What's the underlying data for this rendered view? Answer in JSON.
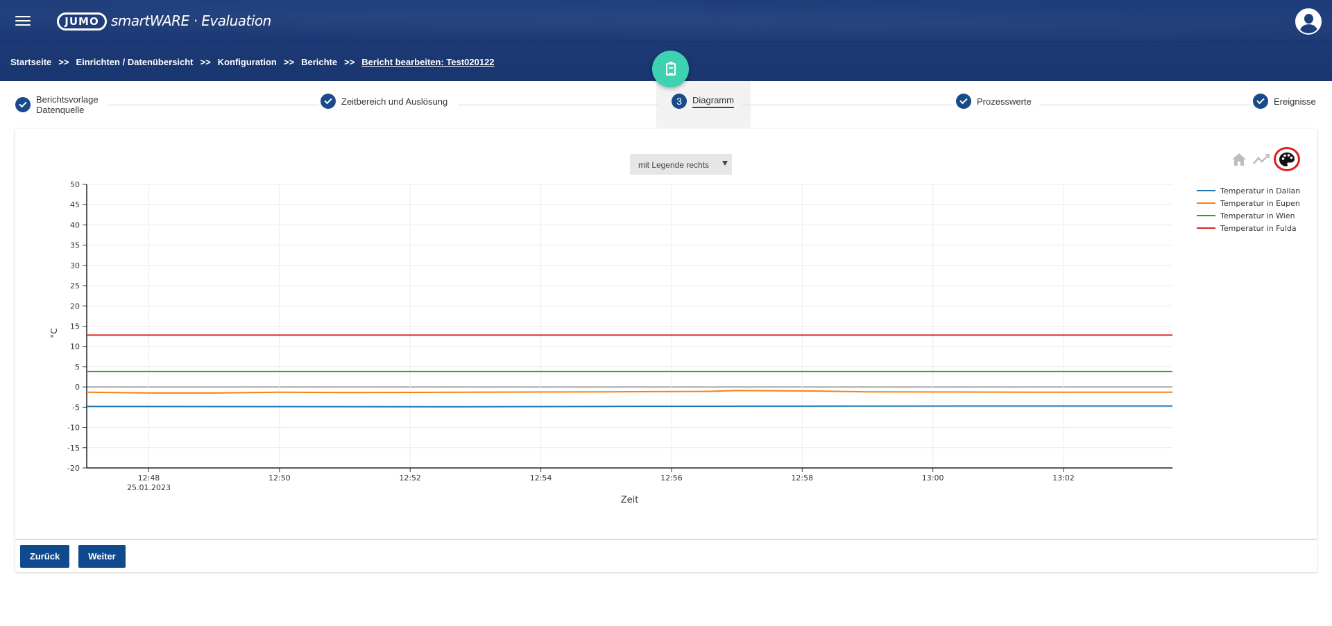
{
  "header": {
    "logo_text": "JUMO",
    "app_title": "smartWARE · Evaluation"
  },
  "breadcrumb": {
    "items": [
      "Startseite",
      "Einrichten / Datenübersicht",
      "Konfiguration",
      "Berichte"
    ],
    "separator": ">>",
    "current": "Bericht bearbeiten: Test020122"
  },
  "stepper": {
    "steps": [
      {
        "label": "Berichtsvorlage",
        "label2": "Datenquelle",
        "state": "done"
      },
      {
        "label": "Zeitbereich und Auslösung",
        "state": "done"
      },
      {
        "number": "3",
        "label": "Diagramm",
        "state": "active"
      },
      {
        "label": "Prozesswerte",
        "state": "done"
      },
      {
        "label": "Ereignisse",
        "state": "done"
      }
    ]
  },
  "toolbar": {
    "legend_select": "mit Legende rechts",
    "home_icon": "home-icon",
    "trend_icon": "trend-icon",
    "palette_icon": "palette-icon"
  },
  "chart_data": {
    "type": "line",
    "xlabel": "Zeit",
    "ylabel": "°C",
    "ylim": [
      -20,
      50
    ],
    "yticks": [
      50,
      45,
      40,
      35,
      30,
      25,
      20,
      15,
      10,
      5,
      0,
      -5,
      -10,
      -15,
      -20
    ],
    "xticks": [
      "12:48",
      "12:50",
      "12:52",
      "12:54",
      "12:56",
      "12:58",
      "13:00",
      "13:02"
    ],
    "x_date_label": "25.01.2023",
    "x_range": [
      "12:47:03",
      "13:03:40"
    ],
    "grid": true,
    "legend_placement": "right",
    "series": [
      {
        "name": "Temperatur in Dalian",
        "color": "#1f77b4",
        "x": [
          "12:47:03",
          "12:52:50",
          "12:55:00",
          "13:00:50",
          "13:03:40"
        ],
        "y": [
          -4.8,
          -4.9,
          -4.8,
          -4.7,
          -4.7
        ]
      },
      {
        "name": "Temperatur in Eupen",
        "color": "#ff7f0e",
        "x": [
          "12:47:03",
          "12:48:00",
          "12:49:00",
          "12:50:00",
          "12:51:00",
          "12:55:00",
          "12:56:30",
          "12:57:00",
          "12:58:10",
          "12:59:00",
          "13:01:30",
          "13:03:40"
        ],
        "y": [
          -1.3,
          -1.5,
          -1.5,
          -1.3,
          -1.4,
          -1.2,
          -1.1,
          -0.9,
          -1.0,
          -1.2,
          -1.3,
          -1.3
        ]
      },
      {
        "name": "Temperatur in Wien",
        "color": "#2ca02c",
        "x": [
          "12:47:03",
          "13:03:40"
        ],
        "y": [
          3.8,
          3.8
        ]
      },
      {
        "name": "Temperatur in Fulda",
        "color": "#d62728",
        "x": [
          "12:47:03",
          "13:03:40"
        ],
        "y": [
          12.8,
          12.8
        ]
      }
    ]
  },
  "footer": {
    "back_label": "Zurück",
    "next_label": "Weiter"
  }
}
